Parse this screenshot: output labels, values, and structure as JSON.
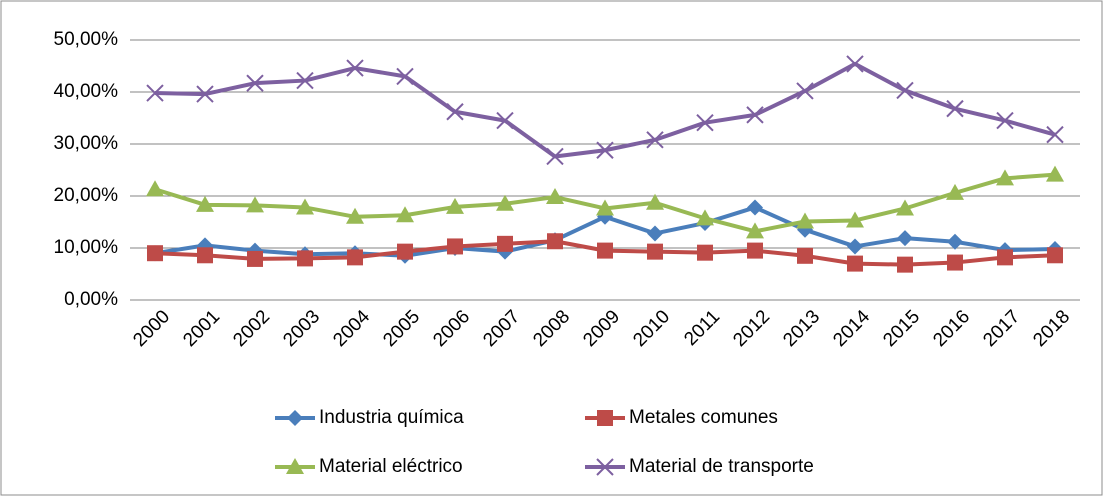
{
  "chart_data": {
    "type": "line",
    "categories": [
      "2000",
      "2001",
      "2002",
      "2003",
      "2004",
      "2005",
      "2006",
      "2007",
      "2008",
      "2009",
      "2010",
      "2011",
      "2012",
      "2013",
      "2014",
      "2015",
      "2016",
      "2017",
      "2018"
    ],
    "series": [
      {
        "name": "Industria química",
        "color": "#4a7ebb",
        "marker": "diamond",
        "values": [
          9,
          10.5,
          9.5,
          8.8,
          9,
          8.5,
          10,
          9.3,
          11.5,
          16,
          12.8,
          14.8,
          17.8,
          13.5,
          10.3,
          11.9,
          11.2,
          9.6,
          9.8
        ]
      },
      {
        "name": "Metales comunes",
        "color": "#be4b48",
        "marker": "square",
        "values": [
          9,
          8.6,
          7.9,
          8,
          8.2,
          9.3,
          10.3,
          10.8,
          11.3,
          9.5,
          9.3,
          9.1,
          9.5,
          8.5,
          7,
          6.8,
          7.2,
          8.2,
          8.6
        ]
      },
      {
        "name": "Material eléctrico",
        "color": "#98b954",
        "marker": "triangle",
        "values": [
          21.3,
          18.3,
          18.2,
          17.8,
          16,
          16.3,
          17.9,
          18.5,
          19.8,
          17.6,
          18.7,
          15.7,
          13.2,
          15.1,
          15.3,
          17.6,
          20.6,
          23.4,
          24.1
        ]
      },
      {
        "name": "Material de transporte",
        "color": "#7d60a0",
        "marker": "x",
        "values": [
          39.8,
          39.6,
          41.7,
          42.2,
          44.6,
          43,
          36.2,
          34.5,
          27.6,
          28.8,
          30.8,
          34.1,
          35.6,
          40.2,
          45.4,
          40.3,
          36.8,
          34.5,
          31.8
        ]
      }
    ],
    "ylim": [
      0,
      50
    ],
    "yticks": [
      {
        "value": 0,
        "label": "0,00%"
      },
      {
        "value": 10,
        "label": "10,00%"
      },
      {
        "value": 20,
        "label": "20,00%"
      },
      {
        "value": 30,
        "label": "30,00%"
      },
      {
        "value": 40,
        "label": "40,00%"
      },
      {
        "value": 50,
        "label": "50,00%"
      }
    ],
    "grid": true,
    "legend": "bottom"
  }
}
